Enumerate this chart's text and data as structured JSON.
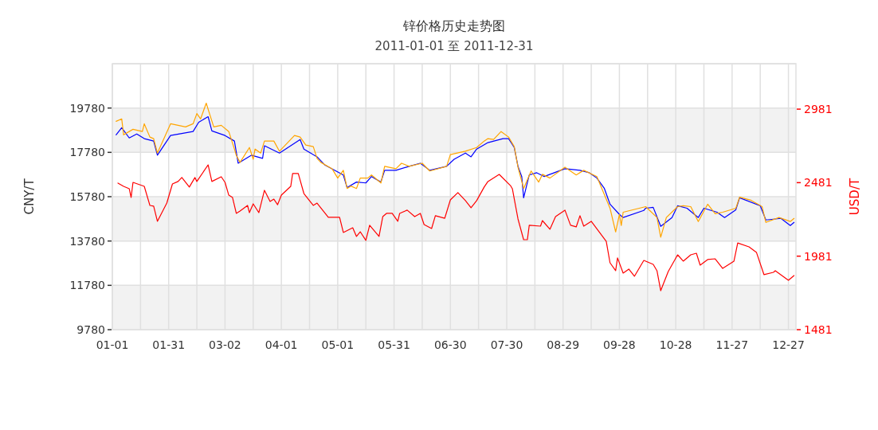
{
  "chart_data": {
    "type": "line",
    "title": "锌价格历史走势图",
    "subtitle": "2011-01-01 至 2011-12-31",
    "ylabel": "CNY/T",
    "y2label": "USD/T",
    "xlim": [
      "2011-01-01",
      "2011-12-31"
    ],
    "xticks": [
      {
        "value": "2011-01-01",
        "label": "01-01"
      },
      {
        "value": "2011-01-16",
        "label": null
      },
      {
        "value": "2011-01-31",
        "label": "01-31"
      },
      {
        "value": "2011-02-15",
        "label": null
      },
      {
        "value": "2011-03-02",
        "label": "03-02"
      },
      {
        "value": "2011-03-17",
        "label": null
      },
      {
        "value": "2011-04-01",
        "label": "04-01"
      },
      {
        "value": "2011-04-16",
        "label": null
      },
      {
        "value": "2011-05-01",
        "label": "05-01"
      },
      {
        "value": "2011-05-16",
        "label": null
      },
      {
        "value": "2011-05-31",
        "label": "05-31"
      },
      {
        "value": "2011-06-15",
        "label": null
      },
      {
        "value": "2011-06-30",
        "label": "06-30"
      },
      {
        "value": "2011-07-15",
        "label": null
      },
      {
        "value": "2011-07-30",
        "label": "07-30"
      },
      {
        "value": "2011-08-14",
        "label": null
      },
      {
        "value": "2011-08-29",
        "label": "08-29"
      },
      {
        "value": "2011-09-13",
        "label": null
      },
      {
        "value": "2011-09-28",
        "label": "09-28"
      },
      {
        "value": "2011-10-13",
        "label": null
      },
      {
        "value": "2011-10-28",
        "label": "10-28"
      },
      {
        "value": "2011-11-12",
        "label": null
      },
      {
        "value": "2011-11-27",
        "label": "11-27"
      },
      {
        "value": "2011-12-12",
        "label": null
      },
      {
        "value": "2011-12-27",
        "label": "12-27"
      }
    ],
    "ylim": [
      9780,
      21780
    ],
    "yticks": [
      9780,
      11780,
      13780,
      15780,
      17780,
      19780
    ],
    "y2lim": [
      1481,
      3290
    ],
    "y2ticks": [
      1481,
      1981,
      2481,
      2981
    ],
    "grid": true,
    "marker": "none",
    "line_style": "solid",
    "series": [
      {
        "color": "#0000ff",
        "x": [
          "2011-01-03",
          "2011-01-06",
          "2011-01-10",
          "2011-01-14",
          "2011-01-18",
          "2011-01-23",
          "2011-01-25",
          "2011-02-01",
          "2011-02-13",
          "2011-02-16",
          "2011-02-21",
          "2011-02-23",
          "2011-03-02",
          "2011-03-07",
          "2011-03-09",
          "2011-03-16",
          "2011-03-22",
          "2011-03-23",
          "2011-03-31",
          "2011-04-11",
          "2011-04-13",
          "2011-04-20",
          "2011-04-24",
          "2011-05-04",
          "2011-05-06",
          "2011-05-11",
          "2011-05-16",
          "2011-05-19",
          "2011-05-24",
          "2011-05-26",
          "2011-06-01",
          "2011-06-08",
          "2011-06-14",
          "2011-06-19",
          "2011-06-28",
          "2011-07-02",
          "2011-07-08",
          "2011-07-11",
          "2011-07-14",
          "2011-07-20",
          "2011-07-28",
          "2011-07-31",
          "2011-08-03",
          "2011-08-05",
          "2011-08-07",
          "2011-08-08",
          "2011-08-11",
          "2011-08-15",
          "2011-08-19",
          "2011-08-30",
          "2011-09-07",
          "2011-09-12",
          "2011-09-16",
          "2011-09-20",
          "2011-09-23",
          "2011-09-28",
          "2011-09-30",
          "2011-10-11",
          "2011-10-12",
          "2011-10-16",
          "2011-10-20",
          "2011-10-26",
          "2011-10-29",
          "2011-11-03",
          "2011-11-09",
          "2011-11-12",
          "2011-11-19",
          "2011-11-23",
          "2011-11-29",
          "2011-12-01",
          "2011-12-12",
          "2011-12-15",
          "2011-12-23",
          "2011-12-28",
          "2011-12-30"
        ],
        "values": [
          18570,
          18890,
          18430,
          18610,
          18400,
          18290,
          17650,
          18540,
          18720,
          19140,
          19390,
          18750,
          18540,
          18290,
          17290,
          17650,
          17510,
          18080,
          17750,
          18360,
          17930,
          17580,
          17220,
          16760,
          16190,
          16440,
          16400,
          16690,
          16440,
          16970,
          16970,
          17150,
          17290,
          16970,
          17150,
          17470,
          17750,
          17580,
          17930,
          18220,
          18400,
          18400,
          18000,
          17150,
          16690,
          15730,
          16760,
          16860,
          16690,
          17040,
          16970,
          16860,
          16620,
          16150,
          15440,
          14980,
          14840,
          15160,
          15260,
          15300,
          14440,
          14840,
          15370,
          15260,
          14840,
          15260,
          15080,
          14840,
          15190,
          15730,
          15370,
          14730,
          14800,
          14480,
          14620
        ]
      },
      {
        "color": "#ffa500",
        "x": [
          "2011-01-03",
          "2011-01-06",
          "2011-01-07",
          "2011-01-12",
          "2011-01-17",
          "2011-01-18",
          "2011-01-21",
          "2011-01-23",
          "2011-01-25",
          "2011-02-01",
          "2011-02-09",
          "2011-02-13",
          "2011-02-15",
          "2011-02-17",
          "2011-02-20",
          "2011-02-22",
          "2011-02-24",
          "2011-02-28",
          "2011-03-04",
          "2011-03-07",
          "2011-03-08",
          "2011-03-10",
          "2011-03-15",
          "2011-03-17",
          "2011-03-18",
          "2011-03-21",
          "2011-03-23",
          "2011-03-28",
          "2011-03-31",
          "2011-04-08",
          "2011-04-11",
          "2011-04-14",
          "2011-04-18",
          "2011-04-20",
          "2011-04-22",
          "2011-04-28",
          "2011-05-01",
          "2011-05-04",
          "2011-05-06",
          "2011-05-08",
          "2011-05-11",
          "2011-05-13",
          "2011-05-17",
          "2011-05-19",
          "2011-05-24",
          "2011-05-26",
          "2011-06-01",
          "2011-06-04",
          "2011-06-08",
          "2011-06-15",
          "2011-06-19",
          "2011-06-28",
          "2011-06-30",
          "2011-07-08",
          "2011-07-14",
          "2011-07-18",
          "2011-07-20",
          "2011-07-23",
          "2011-07-27",
          "2011-07-31",
          "2011-08-03",
          "2011-08-05",
          "2011-08-08",
          "2011-08-12",
          "2011-08-16",
          "2011-08-18",
          "2011-08-22",
          "2011-08-30",
          "2011-09-05",
          "2011-09-09",
          "2011-09-16",
          "2011-09-23",
          "2011-09-26",
          "2011-09-28",
          "2011-09-29",
          "2011-09-30",
          "2011-10-12",
          "2011-10-18",
          "2011-10-20",
          "2011-10-23",
          "2011-10-29",
          "2011-11-01",
          "2011-11-05",
          "2011-11-09",
          "2011-11-14",
          "2011-11-18",
          "2011-11-22",
          "2011-11-29",
          "2011-12-01",
          "2011-12-07",
          "2011-12-13",
          "2011-12-15",
          "2011-12-22",
          "2011-12-28",
          "2011-12-30"
        ],
        "values": [
          19180,
          19290,
          18570,
          18820,
          18720,
          19070,
          18470,
          18400,
          17750,
          19070,
          18930,
          19070,
          19530,
          19290,
          20000,
          19460,
          18930,
          19000,
          18720,
          17930,
          17650,
          17330,
          18000,
          17470,
          17930,
          17750,
          18290,
          18290,
          17830,
          18540,
          18470,
          18110,
          18040,
          17510,
          17330,
          17040,
          16620,
          16970,
          16150,
          16260,
          16150,
          16620,
          16620,
          16760,
          16400,
          17150,
          17040,
          17290,
          17150,
          17290,
          16940,
          17150,
          17680,
          17830,
          18000,
          18290,
          18400,
          18360,
          18720,
          18470,
          18040,
          17110,
          16150,
          16940,
          16440,
          16790,
          16620,
          17110,
          16760,
          16970,
          16690,
          15260,
          14190,
          14980,
          14480,
          15080,
          15330,
          14840,
          13950,
          14840,
          15330,
          15370,
          15330,
          14660,
          15440,
          15010,
          15080,
          15260,
          15760,
          15620,
          15330,
          14620,
          14840,
          14660,
          14800
        ]
      },
      {
        "color": "#ff0000",
        "axis": "y2",
        "x": [
          "2011-01-04",
          "2011-01-07",
          "2011-01-10",
          "2011-01-11",
          "2011-01-12",
          "2011-01-18",
          "2011-01-21",
          "2011-01-23",
          "2011-01-25",
          "2011-01-30",
          "2011-02-02",
          "2011-02-05",
          "2011-02-07",
          "2011-02-11",
          "2011-02-14",
          "2011-02-15",
          "2011-02-21",
          "2011-02-23",
          "2011-02-28",
          "2011-03-02",
          "2011-03-04",
          "2011-03-06",
          "2011-03-08",
          "2011-03-10",
          "2011-03-14",
          "2011-03-15",
          "2011-03-17",
          "2011-03-20",
          "2011-03-23",
          "2011-03-26",
          "2011-03-28",
          "2011-03-30",
          "2011-04-01",
          "2011-04-06",
          "2011-04-07",
          "2011-04-10",
          "2011-04-13",
          "2011-04-18",
          "2011-04-20",
          "2011-04-26",
          "2011-05-02",
          "2011-05-04",
          "2011-05-09",
          "2011-05-11",
          "2011-05-13",
          "2011-05-16",
          "2011-05-18",
          "2011-05-23",
          "2011-05-25",
          "2011-05-27",
          "2011-05-30",
          "2011-06-02",
          "2011-06-03",
          "2011-06-07",
          "2011-06-11",
          "2011-06-14",
          "2011-06-16",
          "2011-06-20",
          "2011-06-22",
          "2011-06-27",
          "2011-06-30",
          "2011-07-04",
          "2011-07-06",
          "2011-07-08",
          "2011-07-11",
          "2011-07-14",
          "2011-07-18",
          "2011-07-20",
          "2011-07-26",
          "2011-08-01",
          "2011-08-02",
          "2011-08-05",
          "2011-08-08",
          "2011-08-10",
          "2011-08-11",
          "2011-08-17",
          "2011-08-18",
          "2011-08-22",
          "2011-08-25",
          "2011-08-30",
          "2011-09-02",
          "2011-09-05",
          "2011-09-07",
          "2011-09-09",
          "2011-09-13",
          "2011-09-21",
          "2011-09-23",
          "2011-09-26",
          "2011-09-27",
          "2011-09-30",
          "2011-10-03",
          "2011-10-06",
          "2011-10-11",
          "2011-10-16",
          "2011-10-18",
          "2011-10-20",
          "2011-10-24",
          "2011-10-29",
          "2011-11-01",
          "2011-11-05",
          "2011-11-08",
          "2011-11-10",
          "2011-11-14",
          "2011-11-18",
          "2011-11-22",
          "2011-11-28",
          "2011-11-30",
          "2011-12-06",
          "2011-12-10",
          "2011-12-14",
          "2011-12-19",
          "2011-12-20",
          "2011-12-27",
          "2011-12-30"
        ],
        "values": [
          2478,
          2456,
          2440,
          2380,
          2483,
          2456,
          2326,
          2321,
          2218,
          2342,
          2472,
          2489,
          2516,
          2451,
          2516,
          2489,
          2602,
          2489,
          2521,
          2483,
          2396,
          2380,
          2272,
          2288,
          2326,
          2277,
          2337,
          2277,
          2429,
          2353,
          2369,
          2331,
          2396,
          2456,
          2543,
          2543,
          2407,
          2326,
          2342,
          2245,
          2245,
          2142,
          2174,
          2115,
          2147,
          2088,
          2191,
          2115,
          2250,
          2272,
          2272,
          2218,
          2272,
          2294,
          2250,
          2272,
          2196,
          2169,
          2256,
          2239,
          2364,
          2413,
          2386,
          2359,
          2310,
          2359,
          2451,
          2489,
          2537,
          2461,
          2440,
          2234,
          2093,
          2093,
          2191,
          2185,
          2223,
          2164,
          2250,
          2294,
          2191,
          2180,
          2256,
          2185,
          2218,
          2082,
          1936,
          1882,
          1969,
          1866,
          1893,
          1844,
          1952,
          1925,
          1882,
          1746,
          1876,
          1990,
          1947,
          1990,
          2001,
          1920,
          1958,
          1963,
          1898,
          1947,
          2071,
          2044,
          2006,
          1855,
          1871,
          1882,
          1817,
          1849
        ]
      }
    ]
  }
}
